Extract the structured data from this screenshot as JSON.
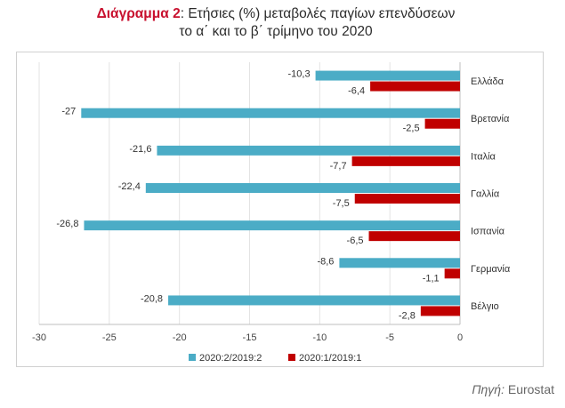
{
  "title": {
    "lead": "Διάγραμμα 2",
    "rest_line1": ": Ετήσιες (%) μεταβολές παγίων επενδύσεων",
    "line2": "το α΄ και το β΄ τρίμηνο του 2020"
  },
  "source": {
    "label": "Πηγή:",
    "value": "Eurostat"
  },
  "chart_data": {
    "type": "bar",
    "orientation": "horizontal",
    "categories": [
      "Ελλάδα",
      "Βρετανία",
      "Ιταλία",
      "Γαλλία",
      "Ισπανία",
      "Γερμανία",
      "Βέλγιο"
    ],
    "series": [
      {
        "name": "2020:2/2019:2",
        "color": "#4bacc6",
        "values": [
          -10.3,
          -27,
          -21.6,
          -22.4,
          -26.8,
          -8.6,
          -20.8
        ],
        "labels": [
          "-10,3",
          "-27",
          "-21,6",
          "-22,4",
          "-26,8",
          "-8,6",
          "-20,8"
        ]
      },
      {
        "name": "2020:1/2019:1",
        "color": "#c00000",
        "values": [
          -6.4,
          -2.5,
          -7.7,
          -7.5,
          -6.5,
          -1.1,
          -2.8
        ],
        "labels": [
          "-6,4",
          "-2,5",
          "-7,7",
          "-7,5",
          "-6,5",
          "-1,1",
          "-2,8"
        ]
      }
    ],
    "xlim": [
      -30,
      0
    ],
    "xticks": [
      -30,
      -25,
      -20,
      -15,
      -10,
      -5,
      0
    ],
    "xtick_labels": [
      "-30",
      "-25",
      "-20",
      "-15",
      "-10",
      "-5",
      "0"
    ],
    "grid": true,
    "legend_position": "bottom"
  }
}
